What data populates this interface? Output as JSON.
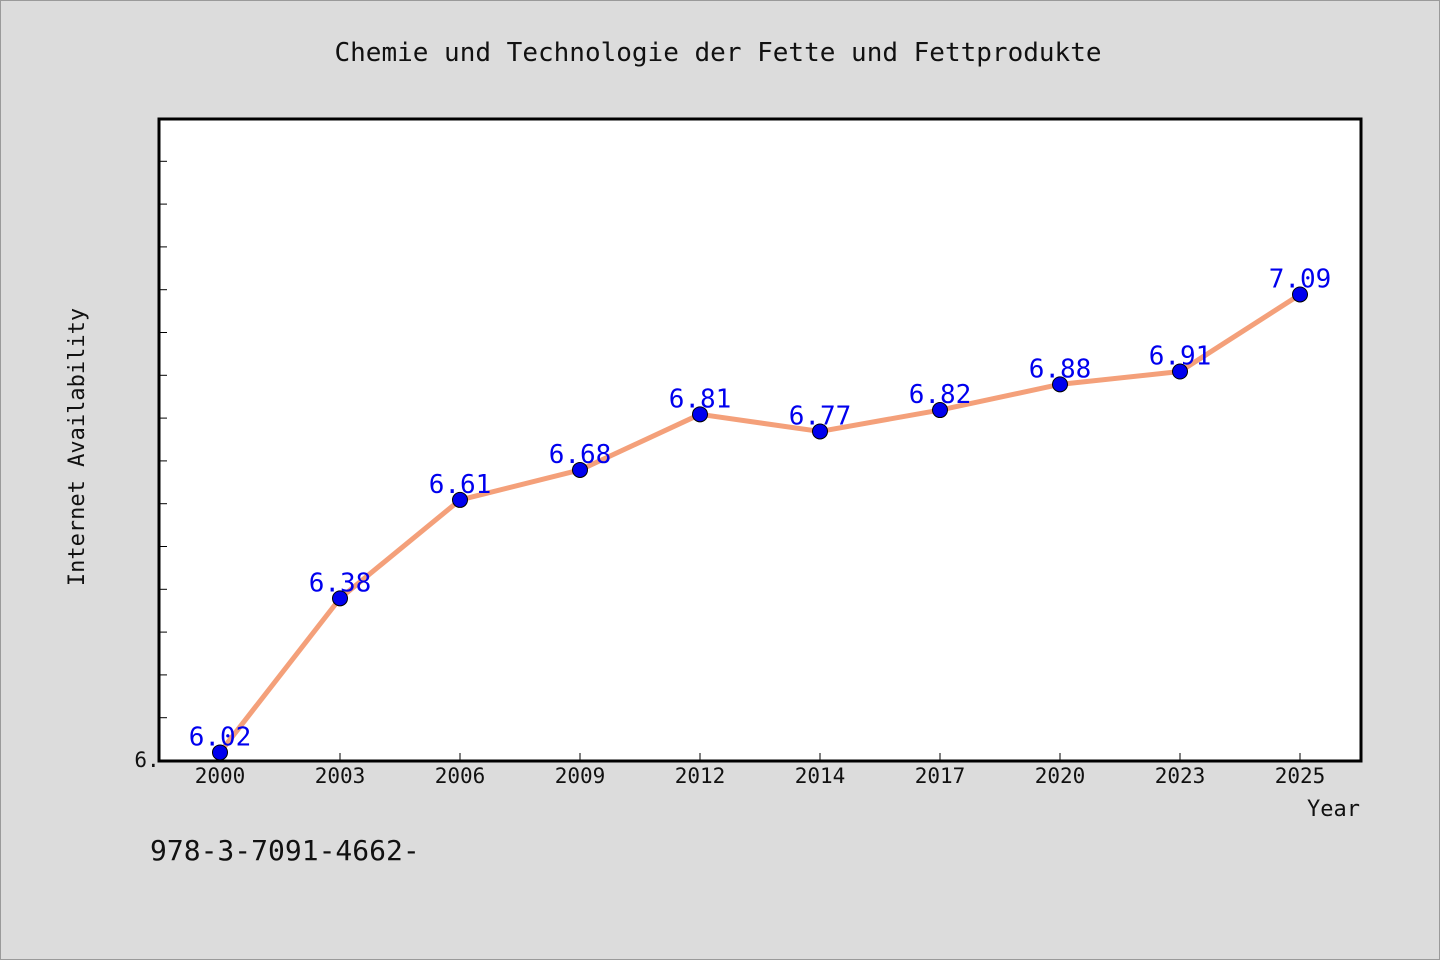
{
  "chart_data": {
    "type": "line",
    "title": "Chemie und Technologie der Fette und Fettprodukte",
    "xlabel": "Year",
    "ylabel": "Internet Availability",
    "categories": [
      "2000",
      "2003",
      "2006",
      "2009",
      "2012",
      "2014",
      "2017",
      "2020",
      "2023",
      "2025"
    ],
    "series": [
      {
        "values": [
          6.02,
          6.38,
          6.61,
          6.68,
          6.81,
          6.77,
          6.82,
          6.88,
          6.91,
          7.09
        ],
        "line_color": "#f4a07a",
        "marker_color": "#0000ee"
      }
    ],
    "ylim": [
      6.0,
      7.5
    ],
    "y_tick_label": "6.",
    "data_labels": [
      "6.02",
      "6.38",
      "6.61",
      "6.68",
      "6.81",
      "6.77",
      "6.82",
      "6.88",
      "6.91",
      "7.09"
    ],
    "grid": false,
    "legend": "none"
  },
  "footer": {
    "isbn": "978-3-7091-4662-"
  }
}
